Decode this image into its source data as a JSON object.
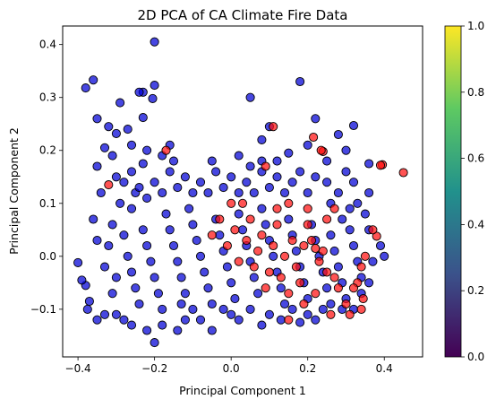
{
  "chart_data": {
    "type": "scatter",
    "title": "2D PCA of CA Climate Fire Data",
    "xlabel": "Principal Component 1",
    "ylabel": "Principal Component 2",
    "xlim": [
      -0.44,
      0.5
    ],
    "ylim": [
      -0.19,
      0.435
    ],
    "x_ticks": [
      -0.4,
      -0.2,
      0.0,
      0.2,
      0.4
    ],
    "y_ticks": [
      -0.1,
      0.0,
      0.1,
      0.2,
      0.3,
      0.4
    ],
    "x_tick_labels": [
      "−0.4",
      "−0.2",
      "0.0",
      "0.2",
      "0.4"
    ],
    "y_tick_labels": [
      "−0.1",
      "0.0",
      "0.1",
      "0.2",
      "0.3",
      "0.4"
    ],
    "grid": false,
    "colors": {
      "class_0": "#0000d6",
      "class_1": "#ff1010",
      "edge": "#000000"
    },
    "colorbar": {
      "range": [
        0.0,
        1.0
      ],
      "ticks": [
        0.0,
        0.2,
        0.4,
        0.6,
        0.8,
        1.0
      ],
      "tick_labels": [
        "0.0",
        "0.2",
        "0.4",
        "0.6",
        "0.8",
        "1.0"
      ],
      "colormap": "viridis"
    },
    "series": [
      {
        "class": 0,
        "points": [
          [
            -0.2,
            0.405
          ],
          [
            -0.36,
            0.333
          ],
          [
            -0.38,
            0.318
          ],
          [
            -0.23,
            0.31
          ],
          [
            -0.24,
            0.31
          ],
          [
            -0.2,
            0.323
          ],
          [
            -0.205,
            0.298
          ],
          [
            -0.29,
            0.29
          ],
          [
            -0.35,
            0.26
          ],
          [
            -0.32,
            0.245
          ],
          [
            -0.3,
            0.232
          ],
          [
            -0.27,
            0.24
          ],
          [
            -0.23,
            0.262
          ],
          [
            -0.33,
            0.205
          ],
          [
            -0.31,
            0.19
          ],
          [
            -0.26,
            0.21
          ],
          [
            -0.22,
            0.2
          ],
          [
            -0.18,
            0.19
          ],
          [
            -0.16,
            0.21
          ],
          [
            -0.35,
            0.17
          ],
          [
            -0.23,
            0.175
          ],
          [
            0.18,
            0.33
          ],
          [
            0.05,
            0.3
          ],
          [
            0.22,
            0.26
          ],
          [
            0.32,
            0.247
          ],
          [
            0.1,
            0.245
          ],
          [
            0.28,
            0.23
          ],
          [
            0.08,
            0.22
          ],
          [
            0.2,
            0.21
          ],
          [
            0.3,
            0.2
          ],
          [
            0.15,
            0.195
          ],
          [
            0.02,
            0.19
          ],
          [
            0.08,
            0.18
          ],
          [
            0.25,
            0.18
          ],
          [
            0.36,
            0.175
          ],
          [
            -0.4,
            -0.012
          ],
          [
            -0.38,
            -0.055
          ],
          [
            -0.37,
            -0.085
          ],
          [
            -0.375,
            -0.1
          ],
          [
            -0.39,
            -0.045
          ],
          [
            -0.35,
            0.03
          ],
          [
            -0.36,
            0.07
          ],
          [
            -0.34,
            0.12
          ],
          [
            -0.3,
            0.15
          ],
          [
            -0.28,
            0.14
          ],
          [
            -0.25,
            0.12
          ],
          [
            -0.26,
            0.09
          ],
          [
            -0.29,
            0.1
          ],
          [
            -0.31,
            0.06
          ],
          [
            -0.32,
            0.02
          ],
          [
            -0.33,
            -0.02
          ],
          [
            -0.3,
            -0.04
          ],
          [
            -0.31,
            -0.07
          ],
          [
            -0.33,
            -0.11
          ],
          [
            -0.35,
            -0.12
          ],
          [
            -0.3,
            -0.11
          ],
          [
            -0.28,
            -0.12
          ],
          [
            -0.26,
            -0.13
          ],
          [
            -0.22,
            -0.14
          ],
          [
            -0.2,
            -0.163
          ],
          [
            -0.18,
            -0.13
          ],
          [
            -0.14,
            -0.14
          ],
          [
            -0.12,
            -0.12
          ],
          [
            -0.13,
            -0.09
          ],
          [
            -0.1,
            -0.1
          ],
          [
            -0.08,
            -0.12
          ],
          [
            -0.05,
            -0.14
          ],
          [
            -0.02,
            -0.1
          ],
          [
            0.0,
            -0.11
          ],
          [
            0.02,
            -0.12
          ],
          [
            0.05,
            -0.1
          ],
          [
            0.08,
            -0.13
          ],
          [
            0.1,
            -0.11
          ],
          [
            0.13,
            -0.12
          ],
          [
            0.16,
            -0.1
          ],
          [
            0.18,
            -0.125
          ],
          [
            0.2,
            -0.11
          ],
          [
            0.22,
            -0.12
          ],
          [
            0.24,
            -0.1
          ],
          [
            0.26,
            -0.09
          ],
          [
            0.29,
            -0.1
          ],
          [
            0.32,
            -0.1
          ],
          [
            0.34,
            -0.07
          ],
          [
            0.36,
            -0.05
          ],
          [
            0.37,
            -0.01
          ],
          [
            0.4,
            0.0
          ],
          [
            0.39,
            0.02
          ],
          [
            0.36,
            0.05
          ],
          [
            0.35,
            0.08
          ],
          [
            0.33,
            0.1
          ],
          [
            0.36,
            0.12
          ],
          [
            0.32,
            0.14
          ],
          [
            0.3,
            0.16
          ],
          [
            0.28,
            0.12
          ],
          [
            0.26,
            0.1
          ],
          [
            0.25,
            0.14
          ],
          [
            0.22,
            0.15
          ],
          [
            0.2,
            0.12
          ],
          [
            0.18,
            0.16
          ],
          [
            0.16,
            0.14
          ],
          [
            0.14,
            0.12
          ],
          [
            0.12,
            0.15
          ],
          [
            0.1,
            0.13
          ],
          [
            0.08,
            0.16
          ],
          [
            0.06,
            0.12
          ],
          [
            0.04,
            0.14
          ],
          [
            0.02,
            0.12
          ],
          [
            0.0,
            0.15
          ],
          [
            -0.02,
            0.13
          ],
          [
            -0.04,
            0.16
          ],
          [
            -0.06,
            0.12
          ],
          [
            -0.08,
            0.14
          ],
          [
            -0.1,
            0.12
          ],
          [
            -0.12,
            0.15
          ],
          [
            -0.14,
            0.13
          ],
          [
            -0.16,
            0.16
          ],
          [
            -0.18,
            0.12
          ],
          [
            -0.2,
            0.14
          ],
          [
            -0.22,
            0.11
          ],
          [
            -0.24,
            0.13
          ],
          [
            -0.26,
            0.16
          ],
          [
            -0.15,
            0.18
          ],
          [
            -0.05,
            0.18
          ],
          [
            0.05,
            0.17
          ],
          [
            0.12,
            0.18
          ],
          [
            -0.28,
            0.04
          ],
          [
            -0.27,
            0.0
          ],
          [
            -0.26,
            -0.03
          ],
          [
            -0.25,
            -0.06
          ],
          [
            -0.24,
            -0.09
          ],
          [
            -0.23,
            0.05
          ],
          [
            -0.22,
            0.02
          ],
          [
            -0.21,
            -0.01
          ],
          [
            -0.2,
            -0.04
          ],
          [
            -0.19,
            -0.07
          ],
          [
            -0.18,
            -0.1
          ],
          [
            -0.17,
            0.08
          ],
          [
            -0.16,
            0.05
          ],
          [
            -0.15,
            0.02
          ],
          [
            -0.14,
            -0.01
          ],
          [
            -0.13,
            -0.04
          ],
          [
            -0.12,
            -0.07
          ],
          [
            -0.11,
            0.09
          ],
          [
            -0.1,
            0.06
          ],
          [
            -0.09,
            0.03
          ],
          [
            -0.08,
            0.0
          ],
          [
            -0.07,
            -0.03
          ],
          [
            -0.06,
            -0.06
          ],
          [
            -0.05,
            -0.09
          ],
          [
            -0.04,
            0.07
          ],
          [
            -0.03,
            0.04
          ],
          [
            -0.02,
            0.01
          ],
          [
            -0.01,
            -0.02
          ],
          [
            0.0,
            -0.05
          ],
          [
            0.01,
            -0.08
          ],
          [
            0.02,
            0.08
          ],
          [
            0.03,
            0.05
          ],
          [
            0.04,
            0.02
          ],
          [
            0.05,
            -0.01
          ],
          [
            0.06,
            -0.04
          ],
          [
            0.07,
            -0.07
          ],
          [
            0.08,
            0.09
          ],
          [
            0.09,
            0.06
          ],
          [
            0.1,
            0.03
          ],
          [
            0.11,
            0.0
          ],
          [
            0.12,
            -0.03
          ],
          [
            0.13,
            -0.06
          ],
          [
            0.14,
            -0.09
          ],
          [
            0.15,
            0.07
          ],
          [
            0.16,
            0.04
          ],
          [
            0.17,
            0.01
          ],
          [
            0.18,
            -0.02
          ],
          [
            0.19,
            -0.05
          ],
          [
            0.2,
            -0.08
          ],
          [
            0.21,
            0.06
          ],
          [
            0.22,
            0.03
          ],
          [
            0.23,
            0.0
          ],
          [
            0.24,
            -0.03
          ],
          [
            0.25,
            -0.06
          ],
          [
            0.26,
            0.04
          ],
          [
            0.27,
            0.01
          ],
          [
            0.28,
            -0.02
          ],
          [
            0.29,
            -0.05
          ],
          [
            0.3,
            -0.08
          ],
          [
            0.31,
            0.05
          ],
          [
            0.32,
            0.02
          ],
          [
            0.33,
            -0.01
          ],
          [
            0.34,
            -0.04
          ],
          [
            0.31,
            0.09
          ],
          [
            0.29,
            0.07
          ]
        ]
      },
      {
        "class": 1,
        "points": [
          [
            0.45,
            0.158
          ],
          [
            0.395,
            0.173
          ],
          [
            0.39,
            0.172
          ],
          [
            0.24,
            0.198
          ],
          [
            0.235,
            0.2
          ],
          [
            0.215,
            0.225
          ],
          [
            0.11,
            0.245
          ],
          [
            0.09,
            0.17
          ],
          [
            -0.17,
            0.2
          ],
          [
            -0.32,
            0.135
          ],
          [
            0.38,
            0.038
          ],
          [
            0.37,
            0.05
          ],
          [
            0.35,
            0.0
          ],
          [
            0.34,
            -0.02
          ],
          [
            0.33,
            -0.05
          ],
          [
            0.32,
            -0.06
          ],
          [
            0.345,
            -0.08
          ],
          [
            0.34,
            -0.1
          ],
          [
            0.31,
            -0.11
          ],
          [
            0.3,
            -0.09
          ],
          [
            0.28,
            -0.06
          ],
          [
            0.27,
            -0.04
          ],
          [
            0.25,
            -0.03
          ],
          [
            0.24,
            0.01
          ],
          [
            0.23,
            -0.01
          ],
          [
            0.21,
            0.03
          ],
          [
            0.2,
            0.06
          ],
          [
            0.19,
            0.02
          ],
          [
            0.18,
            -0.05
          ],
          [
            0.17,
            -0.02
          ],
          [
            0.16,
            0.03
          ],
          [
            0.15,
            -0.07
          ],
          [
            0.14,
            0.0
          ],
          [
            0.13,
            -0.04
          ],
          [
            0.12,
            0.06
          ],
          [
            0.11,
            0.02
          ],
          [
            0.1,
            -0.03
          ],
          [
            0.09,
            -0.06
          ],
          [
            0.08,
            0.04
          ],
          [
            0.07,
            0.01
          ],
          [
            0.06,
            -0.02
          ],
          [
            0.05,
            0.07
          ],
          [
            0.04,
            0.03
          ],
          [
            0.02,
            -0.01
          ],
          [
            0.01,
            0.05
          ],
          [
            -0.01,
            0.02
          ],
          [
            -0.03,
            0.07
          ],
          [
            -0.05,
            0.04
          ],
          [
            0.0,
            0.1
          ],
          [
            0.03,
            0.1
          ],
          [
            0.12,
            0.09
          ],
          [
            0.15,
            0.1
          ],
          [
            0.2,
            0.09
          ],
          [
            0.25,
            0.07
          ],
          [
            0.27,
            0.09
          ],
          [
            0.19,
            -0.09
          ],
          [
            0.22,
            -0.07
          ],
          [
            0.26,
            -0.11
          ],
          [
            0.15,
            -0.12
          ],
          [
            0.22,
            0.015
          ]
        ]
      }
    ]
  }
}
